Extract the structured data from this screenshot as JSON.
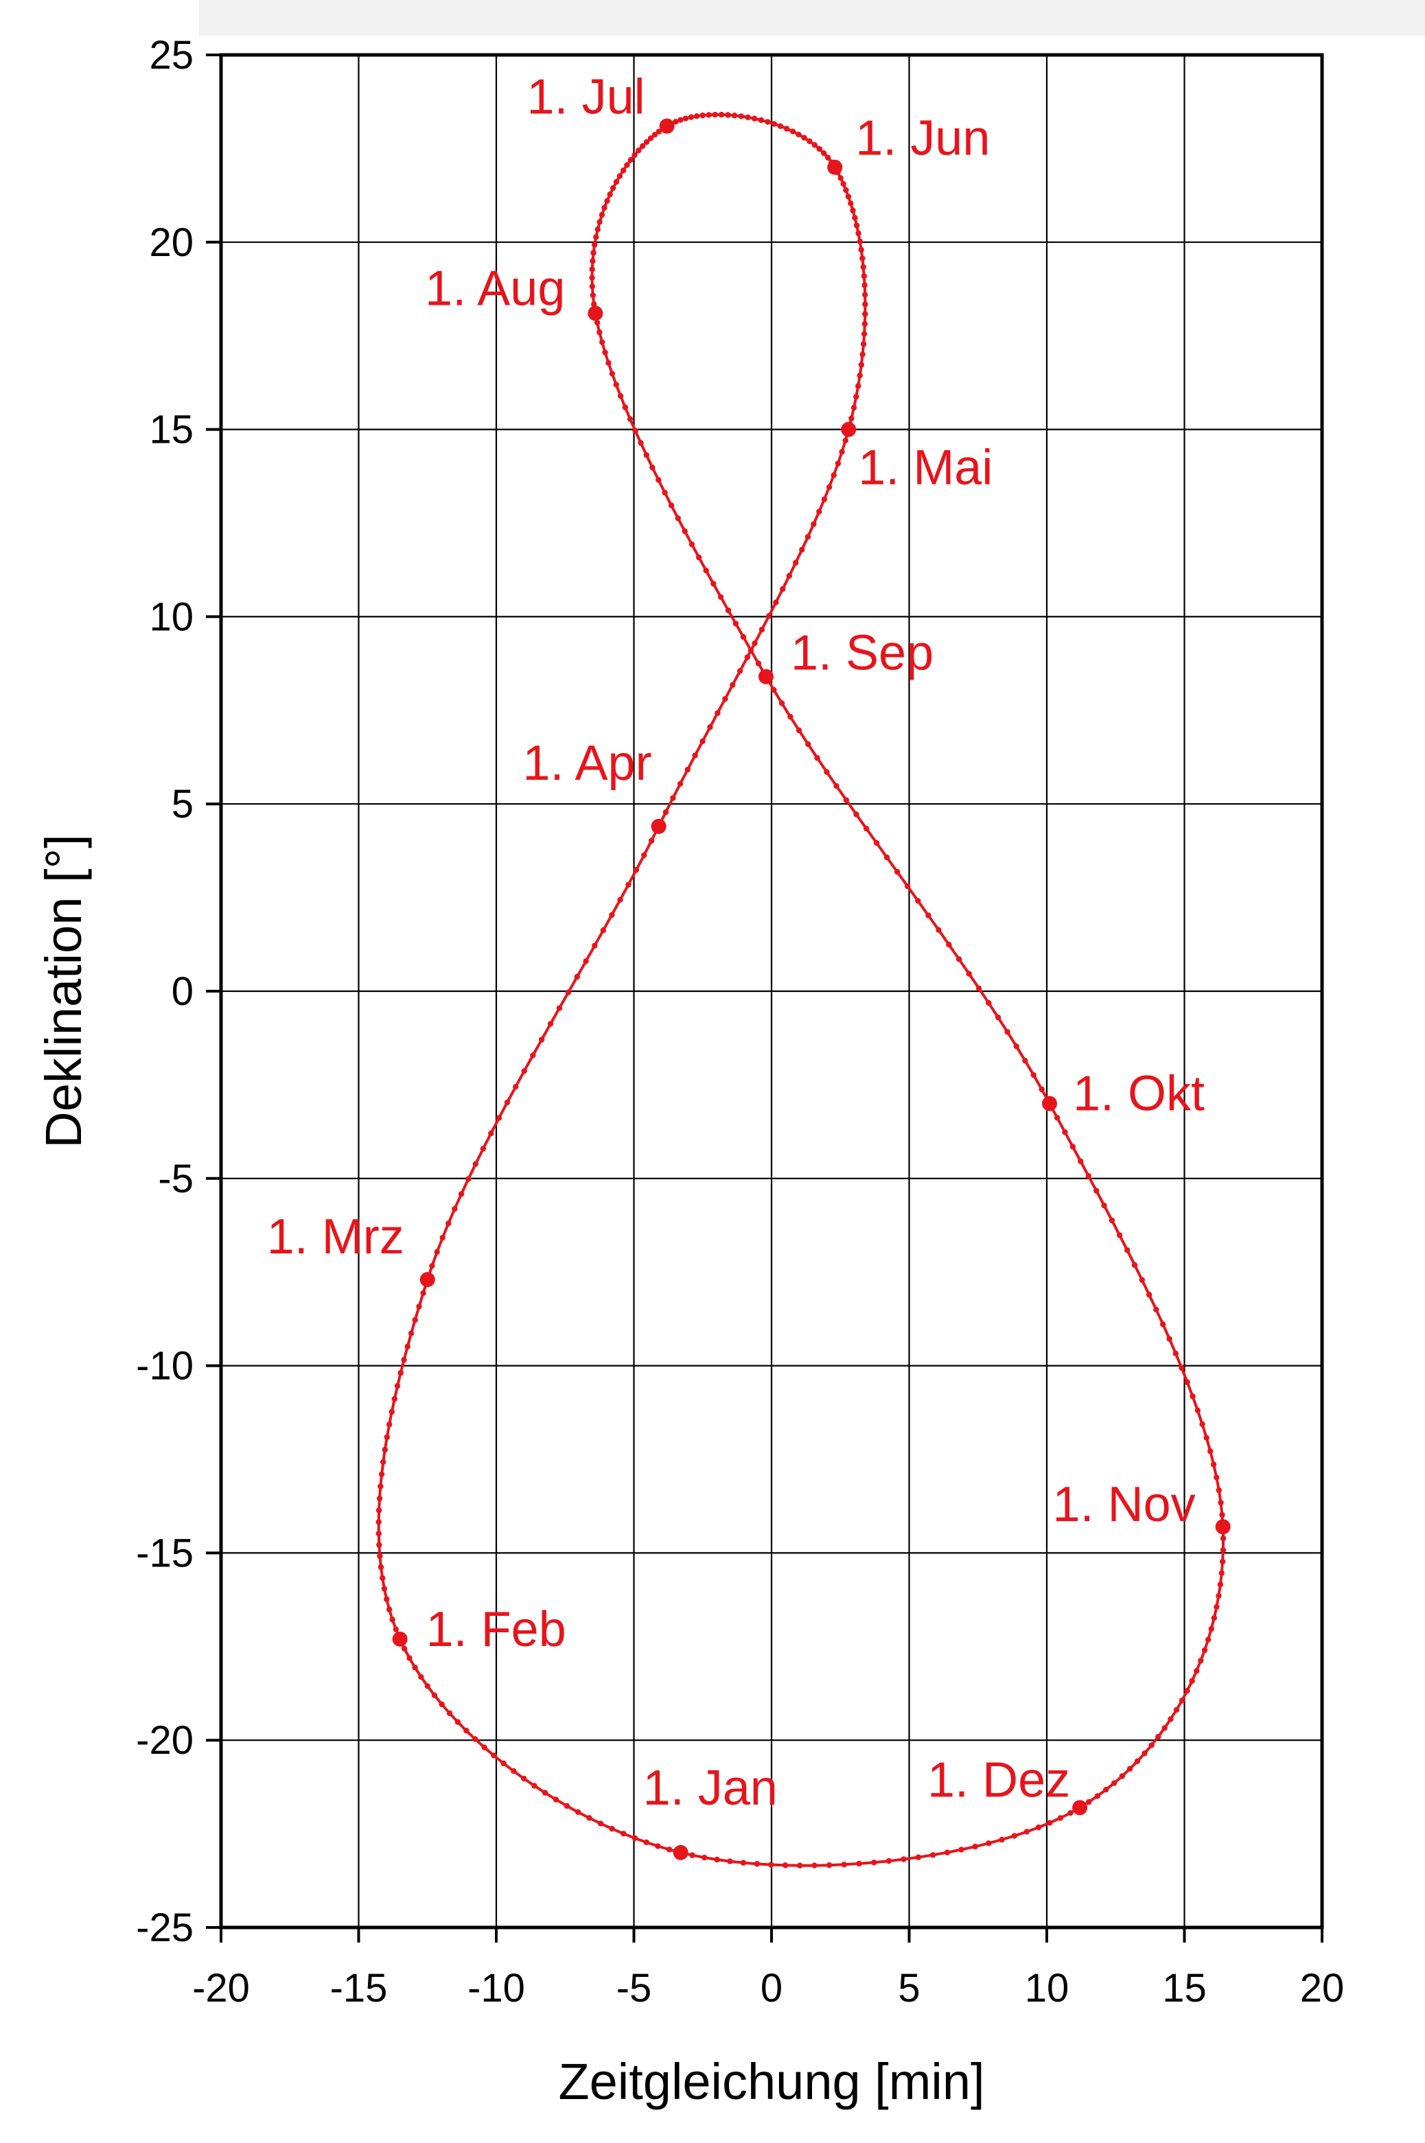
{
  "chart_data": {
    "type": "scatter",
    "xlabel": "Zeitgleichung [min]",
    "ylabel": "Deklination [°]",
    "xlim": [
      -20,
      20
    ],
    "ylim": [
      -25,
      25
    ],
    "xticks": [
      -20,
      -15,
      -10,
      -5,
      0,
      5,
      10,
      15,
      20
    ],
    "yticks": [
      25,
      20,
      15,
      10,
      5,
      0,
      -5,
      -10,
      -15,
      -20,
      -25
    ],
    "grid": true,
    "line_color": "#e8141b",
    "points": [
      {
        "label": "1. Jan",
        "x": -3.3,
        "y": -23.0
      },
      {
        "label": "1. Feb",
        "x": -13.5,
        "y": -17.3
      },
      {
        "label": "1. Mrz",
        "x": -12.5,
        "y": -7.7
      },
      {
        "label": "1. Apr",
        "x": -4.1,
        "y": 4.4
      },
      {
        "label": "1. Mai",
        "x": 2.8,
        "y": 15.0
      },
      {
        "label": "1. Jun",
        "x": 2.3,
        "y": 22.0
      },
      {
        "label": "1. Jul",
        "x": -3.8,
        "y": 23.1
      },
      {
        "label": "1. Aug",
        "x": -6.4,
        "y": 18.1
      },
      {
        "label": "1. Sep",
        "x": -0.2,
        "y": 8.4
      },
      {
        "label": "1. Okt",
        "x": 10.1,
        "y": -3.0
      },
      {
        "label": "1. Nov",
        "x": 16.4,
        "y": -14.3
      },
      {
        "label": "1. Dez",
        "x": 11.2,
        "y": -21.8
      }
    ]
  }
}
